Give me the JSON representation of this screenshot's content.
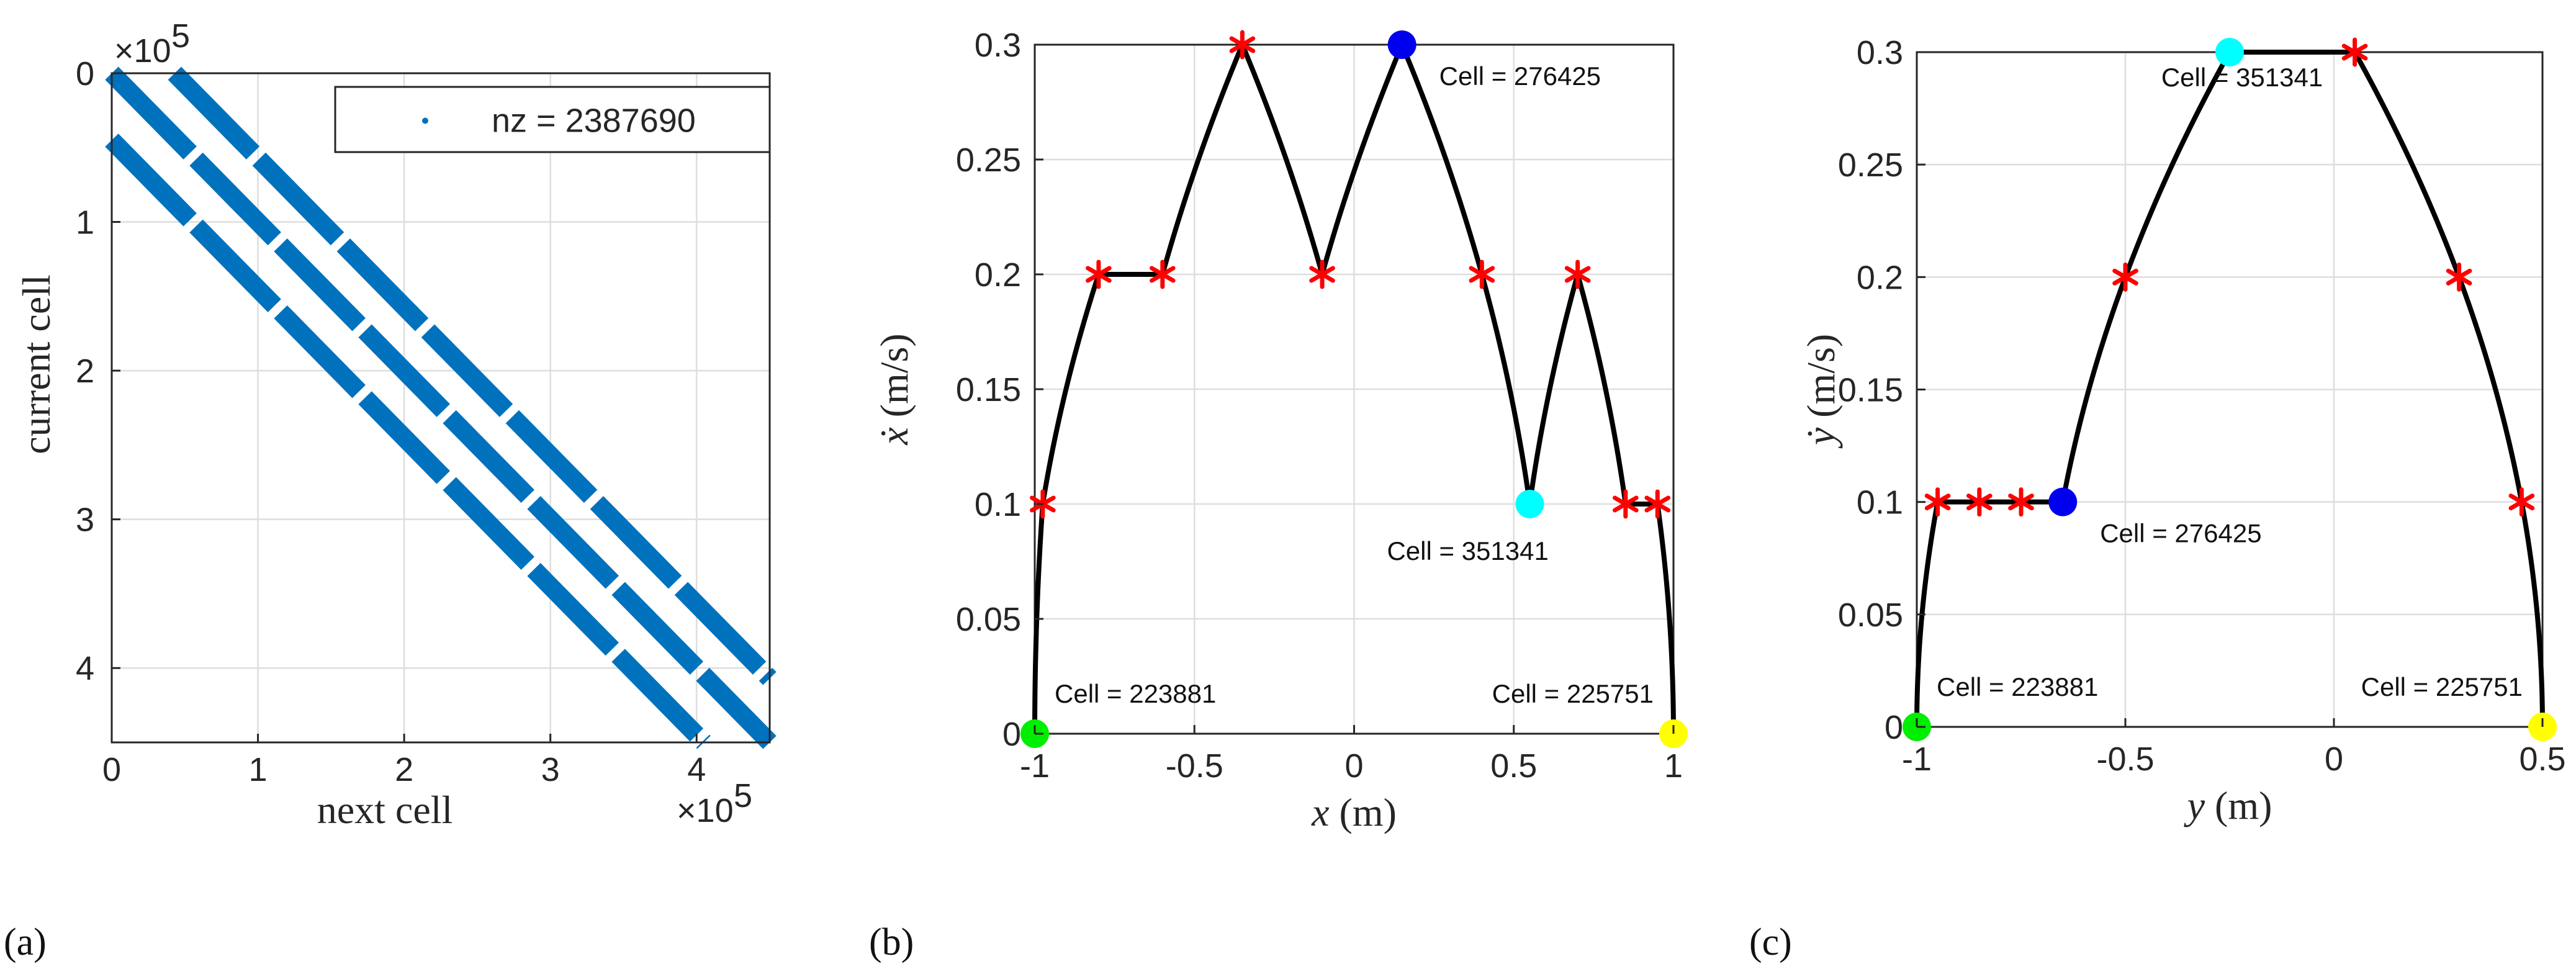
{
  "panels": {
    "a": "(a)",
    "b": "(b)",
    "c": "(c)"
  },
  "chart_data": [
    {
      "id": "a",
      "type": "scatter",
      "subtype": "sparsity-pattern",
      "xlabel": "next cell",
      "ylabel": "current cell",
      "xlim": [
        0,
        450000
      ],
      "ylim": [
        0,
        450000
      ],
      "y_reversed": true,
      "x_ticks": [
        0,
        100000,
        200000,
        300000,
        400000
      ],
      "x_tick_labels": [
        "0",
        "1",
        "2",
        "3",
        "4"
      ],
      "y_ticks": [
        0,
        100000,
        200000,
        300000,
        400000
      ],
      "y_tick_labels": [
        "0",
        "1",
        "2",
        "3",
        "4"
      ],
      "x_exponent": "×10",
      "y_exponent": "×10",
      "exponent_power": "5",
      "legend": "nz = 2387690",
      "legend_position": "top-right",
      "color": "#0072bd",
      "grid": true,
      "bands": [
        {
          "name": "lower diagonal",
          "start": [
            0,
            45000
          ],
          "end": [
            405000,
            450000
          ]
        },
        {
          "name": "main diagonal",
          "start": [
            0,
            0
          ],
          "end": [
            450000,
            450000
          ]
        },
        {
          "name": "upper diagonal",
          "start": [
            43000,
            0
          ],
          "end": [
            450000,
            407000
          ]
        }
      ]
    },
    {
      "id": "b",
      "type": "line",
      "xlabel_sym": "x",
      "xlabel_unit": " (m)",
      "ylabel_sym": "ẋ",
      "ylabel_unit": " (m/s)",
      "xlim": [
        -1,
        1
      ],
      "ylim": [
        0,
        0.3
      ],
      "x_ticks": [
        -1,
        -0.5,
        0,
        0.5,
        1
      ],
      "x_tick_labels": [
        "-1",
        "-0.5",
        "0",
        "0.5",
        "1"
      ],
      "y_ticks": [
        0,
        0.05,
        0.1,
        0.15,
        0.2,
        0.25,
        0.3
      ],
      "y_tick_labels": [
        "0",
        "0.05",
        "0.1",
        "0.15",
        "0.2",
        "0.25",
        "0.3"
      ],
      "grid": true,
      "trajectory": [
        {
          "x": -1,
          "y": 0,
          "kind": "curve"
        },
        {
          "x": -0.975,
          "y": 0.1,
          "kind": "curve"
        },
        {
          "x": -0.8,
          "y": 0.2,
          "kind": "line"
        },
        {
          "x": -0.6,
          "y": 0.2,
          "kind": "curve"
        },
        {
          "x": -0.35,
          "y": 0.3,
          "kind": "curve"
        },
        {
          "x": -0.1,
          "y": 0.2,
          "kind": "curve"
        },
        {
          "x": 0.15,
          "y": 0.3,
          "kind": "curve"
        },
        {
          "x": 0.4,
          "y": 0.2,
          "kind": "curve"
        },
        {
          "x": 0.55,
          "y": 0.1,
          "kind": "curve"
        },
        {
          "x": 0.7,
          "y": 0.2,
          "kind": "curve"
        },
        {
          "x": 0.85,
          "y": 0.1,
          "kind": "line"
        },
        {
          "x": 0.95,
          "y": 0.1,
          "kind": "curve"
        },
        {
          "x": 1,
          "y": 0,
          "kind": "end"
        }
      ],
      "switch_points": [
        {
          "x": -0.975,
          "y": 0.1
        },
        {
          "x": -0.8,
          "y": 0.2
        },
        {
          "x": -0.6,
          "y": 0.2
        },
        {
          "x": -0.35,
          "y": 0.3
        },
        {
          "x": -0.1,
          "y": 0.2
        },
        {
          "x": 0.4,
          "y": 0.2
        },
        {
          "x": 0.7,
          "y": 0.2
        },
        {
          "x": 0.85,
          "y": 0.1
        },
        {
          "x": 0.95,
          "y": 0.1
        }
      ],
      "markers": [
        {
          "x": -1,
          "y": 0,
          "color": "#00ee00",
          "label": "Cell = 223881",
          "label_pos": "above-right"
        },
        {
          "x": 1,
          "y": 0,
          "color": "#ffff00",
          "label": "Cell = 225751",
          "label_pos": "above-left"
        },
        {
          "x": 0.15,
          "y": 0.3,
          "color": "#0000ee",
          "label": "Cell = 276425",
          "label_pos": "below-right"
        },
        {
          "x": 0.55,
          "y": 0.1,
          "color": "#00ffff",
          "label": "Cell = 351341",
          "label_pos": "below-left"
        }
      ]
    },
    {
      "id": "c",
      "type": "line",
      "xlabel_sym": "y",
      "xlabel_unit": " (m)",
      "ylabel_sym": "ẏ",
      "ylabel_unit": " (m/s)",
      "xlim": [
        -1,
        0.5
      ],
      "ylim": [
        0,
        0.3
      ],
      "x_ticks": [
        -1,
        -0.5,
        0,
        0.5
      ],
      "x_tick_labels": [
        "-1",
        "-0.5",
        "0",
        "0.5"
      ],
      "y_ticks": [
        0,
        0.05,
        0.1,
        0.15,
        0.2,
        0.25,
        0.3
      ],
      "y_tick_labels": [
        "0",
        "0.05",
        "0.1",
        "0.15",
        "0.2",
        "0.25",
        "0.3"
      ],
      "grid": true,
      "trajectory": [
        {
          "x": -1,
          "y": 0,
          "kind": "curve"
        },
        {
          "x": -0.95,
          "y": 0.1,
          "kind": "line"
        },
        {
          "x": -0.65,
          "y": 0.1,
          "kind": "curve"
        },
        {
          "x": -0.5,
          "y": 0.2,
          "kind": "curve"
        },
        {
          "x": -0.25,
          "y": 0.3,
          "kind": "line"
        },
        {
          "x": 0.05,
          "y": 0.3,
          "kind": "curve"
        },
        {
          "x": 0.3,
          "y": 0.2,
          "kind": "curve"
        },
        {
          "x": 0.45,
          "y": 0.1,
          "kind": "curve"
        },
        {
          "x": 0.5,
          "y": 0,
          "kind": "end"
        }
      ],
      "switch_points": [
        {
          "x": -0.95,
          "y": 0.1
        },
        {
          "x": -0.85,
          "y": 0.1
        },
        {
          "x": -0.75,
          "y": 0.1
        },
        {
          "x": -0.5,
          "y": 0.2
        },
        {
          "x": 0.05,
          "y": 0.3
        },
        {
          "x": 0.3,
          "y": 0.2
        },
        {
          "x": 0.45,
          "y": 0.1
        }
      ],
      "markers": [
        {
          "x": -1,
          "y": 0,
          "color": "#00ee00",
          "label": "Cell = 223881",
          "label_pos": "above-right"
        },
        {
          "x": 0.5,
          "y": 0,
          "color": "#ffff00",
          "label": "Cell = 225751",
          "label_pos": "above-left"
        },
        {
          "x": -0.65,
          "y": 0.1,
          "color": "#0000ee",
          "label": "Cell = 276425",
          "label_pos": "below-right"
        },
        {
          "x": -0.25,
          "y": 0.3,
          "color": "#00ffff",
          "label": "Cell = 351341",
          "label_pos": "below-center"
        }
      ]
    }
  ]
}
